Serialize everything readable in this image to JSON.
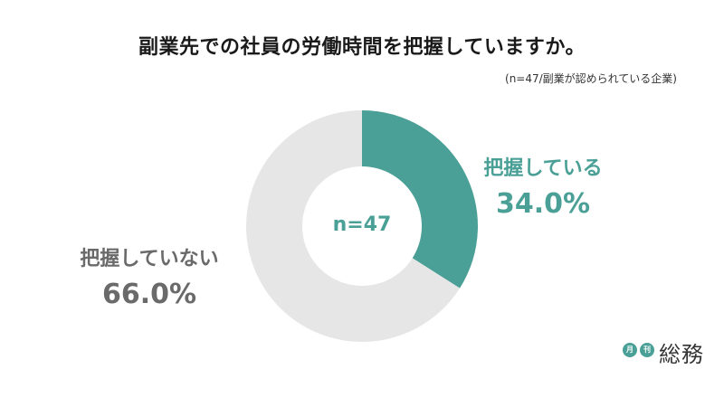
{
  "chart_data": {
    "type": "pie",
    "title": "副業先での社員の労働時間を把握していますか。",
    "subtitle": "(n=47/副業が認められている企業)",
    "center_label": "n=47",
    "slices": [
      {
        "label": "把握している",
        "value": 34.0,
        "value_label": "34.0%",
        "color": "#4aa096"
      },
      {
        "label": "把握していない",
        "value": 66.0,
        "value_label": "66.0%",
        "color": "#e6e6e6"
      }
    ]
  },
  "logo": {
    "badge_1": "月",
    "badge_2": "刊",
    "wordmark": "総務"
  }
}
